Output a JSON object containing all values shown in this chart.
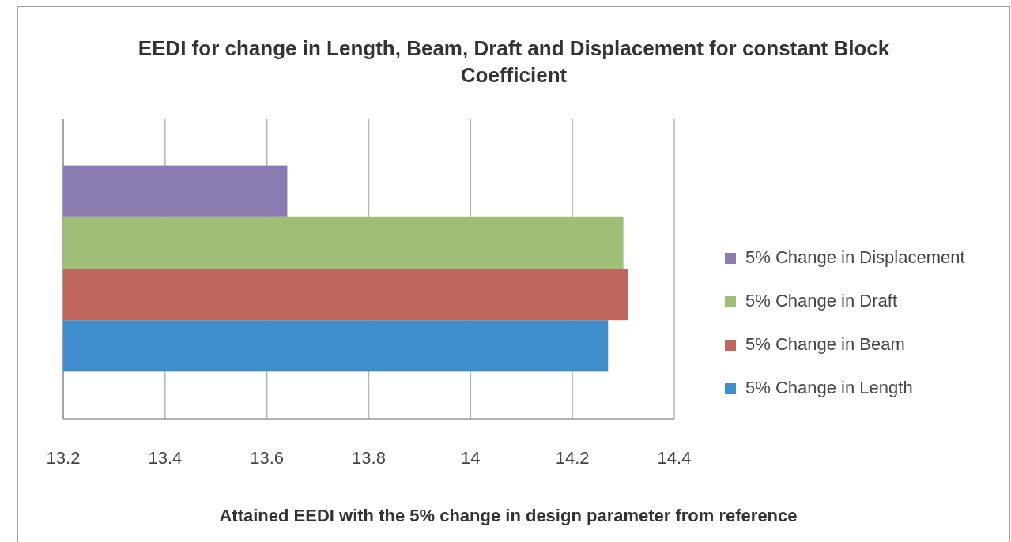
{
  "chart_data": {
    "type": "bar",
    "orientation": "horizontal",
    "title": "EEDI for change in Length, Beam, Draft and Displacement for constant Block Coefficient",
    "xlabel": "Attained EEDI with the 5% change in design parameter from reference",
    "categories": [
      null
    ],
    "series": [
      {
        "name": "5% Change in Length",
        "color": "#3f8ecb",
        "values": [
          14.27
        ]
      },
      {
        "name": "5% Change in Beam",
        "color": "#c0675f",
        "values": [
          14.31
        ]
      },
      {
        "name": "5% Change in Draft",
        "color": "#9fbe76",
        "values": [
          14.3
        ]
      },
      {
        "name": "5% Change in Displacement",
        "color": "#8a7cb0",
        "values": [
          13.64
        ]
      }
    ],
    "xlim": [
      13.2,
      14.4
    ],
    "xticks": [
      13.2,
      13.4,
      13.6,
      13.8,
      14,
      14.2,
      14.4
    ],
    "grid": "x",
    "legend": "right"
  }
}
